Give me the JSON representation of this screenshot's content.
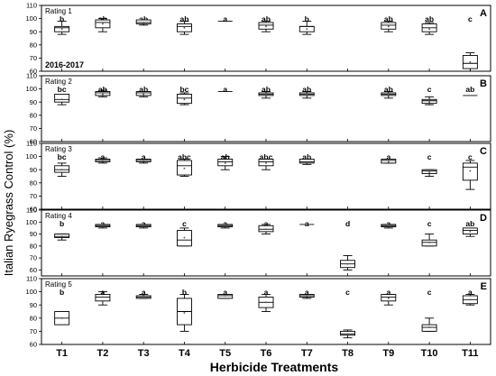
{
  "chart_data": {
    "type": "box",
    "title": "",
    "ylabel": "Italian Ryegrass Control (%)",
    "xlabel": "Herbicide Treatments",
    "categories": [
      "T1",
      "T2",
      "T3",
      "T4",
      "T5",
      "T6",
      "T7",
      "T8",
      "T9",
      "T10",
      "T11"
    ],
    "season_label": "2016-2017",
    "panels": [
      {
        "id": "A",
        "rating": "Rating 1",
        "ylim": [
          60,
          110
        ],
        "yticks": [
          "60",
          "70",
          "80",
          "90",
          "100",
          "110"
        ],
        "letters": [
          "b",
          "ab",
          "ab",
          "ab",
          "a",
          "ab",
          "b",
          "",
          "ab",
          "ab",
          "c"
        ],
        "boxes": [
          {
            "min": 88,
            "q1": 90,
            "median": 93,
            "q3": 94,
            "max": 98,
            "mean": 92
          },
          {
            "min": 90,
            "q1": 93,
            "median": 97,
            "q3": 99,
            "max": 100,
            "mean": 96
          },
          {
            "min": 95,
            "q1": 96,
            "median": 97,
            "q3": 99,
            "max": 99,
            "mean": 97
          },
          {
            "min": 88,
            "q1": 90,
            "median": 94,
            "q3": 96,
            "max": 98,
            "mean": 93
          },
          {
            "min": 98,
            "q1": 98,
            "median": 98,
            "q3": 98,
            "max": 98,
            "mean": 98
          },
          {
            "min": 90,
            "q1": 92,
            "median": 95,
            "q3": 97,
            "max": 98,
            "mean": 94
          },
          {
            "min": 88,
            "q1": 90,
            "median": 94,
            "q3": 94,
            "max": 98,
            "mean": 92
          },
          null,
          {
            "min": 90,
            "q1": 92,
            "median": 95,
            "q3": 97,
            "max": 98,
            "mean": 94
          },
          {
            "min": 88,
            "q1": 90,
            "median": 93,
            "q3": 96,
            "max": 97,
            "mean": 92
          },
          {
            "min": 60,
            "q1": 62,
            "median": 66,
            "q3": 72,
            "max": 74,
            "mean": 67
          }
        ]
      },
      {
        "id": "B",
        "rating": "Rating 2",
        "ylim": [
          60,
          110
        ],
        "yticks": [
          "60",
          "70",
          "80",
          "90",
          "100",
          "110"
        ],
        "letters": [
          "bc",
          "ab",
          "ab",
          "bc",
          "a",
          "ab",
          "ab",
          "",
          "ab",
          "c",
          "ab"
        ],
        "boxes": [
          {
            "min": 88,
            "q1": 90,
            "median": 92,
            "q3": 96,
            "max": 96,
            "mean": 92
          },
          {
            "min": 94,
            "q1": 95,
            "median": 97,
            "q3": 98,
            "max": 99,
            "mean": 96
          },
          {
            "min": 94,
            "q1": 95,
            "median": 97,
            "q3": 98,
            "max": 98,
            "mean": 96
          },
          {
            "min": 88,
            "q1": 89,
            "median": 93,
            "q3": 96,
            "max": 97,
            "mean": 92
          },
          {
            "min": 98,
            "q1": 98,
            "median": 98,
            "q3": 98,
            "max": 98,
            "mean": 98
          },
          {
            "min": 93,
            "q1": 95,
            "median": 96,
            "q3": 97,
            "max": 98,
            "mean": 96
          },
          {
            "min": 93,
            "q1": 95,
            "median": 96,
            "q3": 97,
            "max": 98,
            "mean": 96
          },
          null,
          {
            "min": 93,
            "q1": 95,
            "median": 96,
            "q3": 97,
            "max": 98,
            "mean": 96
          },
          {
            "min": 88,
            "q1": 89,
            "median": 91,
            "q3": 92,
            "max": 94,
            "mean": 90
          },
          {
            "min": 95,
            "q1": 95,
            "median": 95,
            "q3": 95,
            "max": 95,
            "mean": 95
          }
        ]
      },
      {
        "id": "C",
        "rating": "Rating 3",
        "ylim": [
          60,
          110
        ],
        "yticks": [
          "60",
          "70",
          "80",
          "90",
          "100",
          "110"
        ],
        "letters": [
          "bc",
          "a",
          "a",
          "abc",
          "ab",
          "abc",
          "ab",
          "",
          "a",
          "c",
          "c"
        ],
        "boxes": [
          {
            "min": 85,
            "q1": 88,
            "median": 90,
            "q3": 93,
            "max": 95,
            "mean": 90
          },
          {
            "min": 95,
            "q1": 96,
            "median": 97,
            "q3": 98,
            "max": 99,
            "mean": 97
          },
          {
            "min": 95,
            "q1": 96,
            "median": 97,
            "q3": 98,
            "max": 98,
            "mean": 97
          },
          {
            "min": 85,
            "q1": 86,
            "median": 93,
            "q3": 97,
            "max": 98,
            "mean": 91
          },
          {
            "min": 90,
            "q1": 93,
            "median": 96,
            "q3": 98,
            "max": 100,
            "mean": 95
          },
          {
            "min": 90,
            "q1": 93,
            "median": 96,
            "q3": 98,
            "max": 98,
            "mean": 95
          },
          {
            "min": 94,
            "q1": 95,
            "median": 96,
            "q3": 98,
            "max": 98,
            "mean": 96
          },
          null,
          {
            "min": 95,
            "q1": 95,
            "median": 97,
            "q3": 98,
            "max": 98,
            "mean": 96
          },
          {
            "min": 85,
            "q1": 87,
            "median": 89,
            "q3": 90,
            "max": 90,
            "mean": 88
          },
          {
            "min": 75,
            "q1": 82,
            "median": 92,
            "q3": 95,
            "max": 97,
            "mean": 89
          }
        ]
      },
      {
        "id": "D",
        "rating": "Rating 4",
        "ylim": [
          55,
          110
        ],
        "yticks": [
          "60",
          "70",
          "80",
          "90",
          "100",
          "110"
        ],
        "letters": [
          "b",
          "a",
          "a",
          "c",
          "a",
          "a",
          "a",
          "d",
          "a",
          "c",
          "ab"
        ],
        "boxes": [
          {
            "min": 85,
            "q1": 87,
            "median": 88,
            "q3": 90,
            "max": 90,
            "mean": 88
          },
          {
            "min": 95,
            "q1": 96,
            "median": 97,
            "q3": 98,
            "max": 98,
            "mean": 97
          },
          {
            "min": 95,
            "q1": 96,
            "median": 97,
            "q3": 98,
            "max": 98,
            "mean": 97
          },
          {
            "min": 80,
            "q1": 80,
            "median": 85,
            "q3": 93,
            "max": 95,
            "mean": 87
          },
          {
            "min": 95,
            "q1": 96,
            "median": 97,
            "q3": 98,
            "max": 98,
            "mean": 97
          },
          {
            "min": 90,
            "q1": 92,
            "median": 94,
            "q3": 97,
            "max": 98,
            "mean": 94
          },
          {
            "min": 98,
            "q1": 98,
            "median": 98,
            "q3": 98,
            "max": 98,
            "mean": 98
          },
          {
            "min": 60,
            "q1": 62,
            "median": 65,
            "q3": 68,
            "max": 72,
            "mean": 65
          },
          {
            "min": 95,
            "q1": 96,
            "median": 97,
            "q3": 98,
            "max": 98,
            "mean": 97
          },
          {
            "min": 80,
            "q1": 80,
            "median": 83,
            "q3": 85,
            "max": 90,
            "mean": 83
          },
          {
            "min": 88,
            "q1": 90,
            "median": 93,
            "q3": 95,
            "max": 95,
            "mean": 92
          }
        ]
      },
      {
        "id": "E",
        "rating": "Rating 5",
        "ylim": [
          60,
          110
        ],
        "yticks": [
          "60",
          "70",
          "80",
          "90",
          "100",
          "110"
        ],
        "letters": [
          "b",
          "a",
          "a",
          "b",
          "a",
          "a",
          "a",
          "c",
          "a",
          "c",
          "a"
        ],
        "boxes": [
          {
            "min": 75,
            "q1": 75,
            "median": 80,
            "q3": 85,
            "max": 85,
            "mean": 80
          },
          {
            "min": 90,
            "q1": 93,
            "median": 96,
            "q3": 98,
            "max": 100,
            "mean": 96
          },
          {
            "min": 95,
            "q1": 95,
            "median": 96,
            "q3": 97,
            "max": 98,
            "mean": 96
          },
          {
            "min": 70,
            "q1": 75,
            "median": 85,
            "q3": 95,
            "max": 98,
            "mean": 84
          },
          {
            "min": 95,
            "q1": 95,
            "median": 97,
            "q3": 98,
            "max": 98,
            "mean": 97
          },
          {
            "min": 85,
            "q1": 88,
            "median": 92,
            "q3": 96,
            "max": 98,
            "mean": 92
          },
          {
            "min": 95,
            "q1": 96,
            "median": 97,
            "q3": 98,
            "max": 98,
            "mean": 97
          },
          {
            "min": 65,
            "q1": 67,
            "median": 68,
            "q3": 70,
            "max": 71,
            "mean": 68
          },
          {
            "min": 90,
            "q1": 93,
            "median": 96,
            "q3": 98,
            "max": 98,
            "mean": 95
          },
          {
            "min": 70,
            "q1": 70,
            "median": 73,
            "q3": 75,
            "max": 80,
            "mean": 73
          },
          {
            "min": 90,
            "q1": 91,
            "median": 94,
            "q3": 97,
            "max": 98,
            "mean": 94
          }
        ]
      }
    ]
  }
}
